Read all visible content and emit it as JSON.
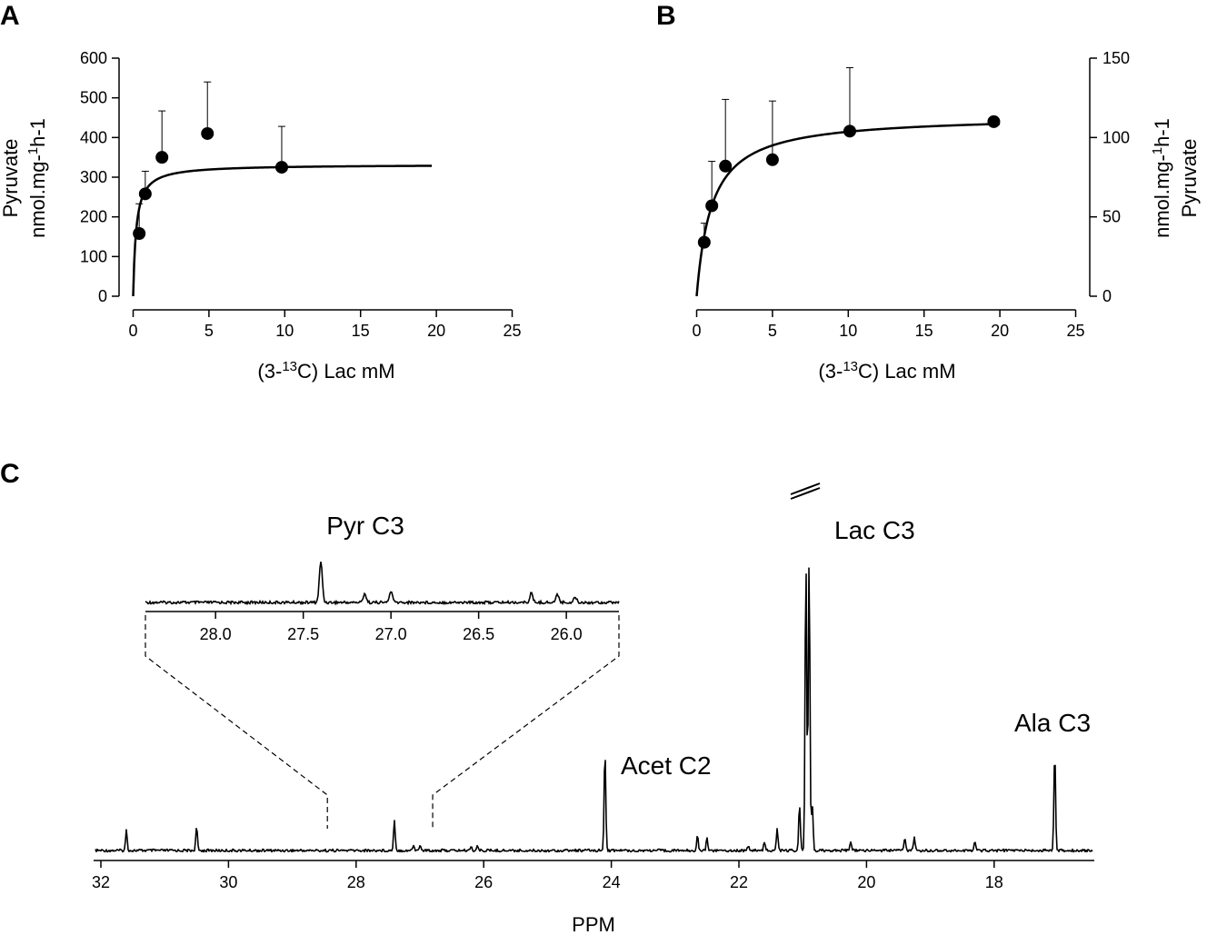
{
  "panels": {
    "A": {
      "letter": "A"
    },
    "B": {
      "letter": "B"
    },
    "C": {
      "letter": "C"
    }
  },
  "chart_data": [
    {
      "id": "A",
      "type": "scatter",
      "xlabel_parts": [
        "(3-",
        "13",
        "C) Lac mM"
      ],
      "ylabel_lines": [
        "Pyruvate",
        "nmol.mg-",
        "1",
        "h-1"
      ],
      "xlim": [
        0,
        25
      ],
      "ylim": [
        0,
        600
      ],
      "xticks": [
        0,
        5,
        10,
        15,
        20,
        25
      ],
      "yticks": [
        0,
        100,
        200,
        300,
        400,
        500,
        600
      ],
      "yaxis_side": "left",
      "points": [
        {
          "x": 0.4,
          "y": 158,
          "err": 75
        },
        {
          "x": 0.8,
          "y": 258,
          "err": 57
        },
        {
          "x": 1.9,
          "y": 350,
          "err": 117
        },
        {
          "x": 4.9,
          "y": 410,
          "err": 130
        },
        {
          "x": 9.8,
          "y": 325,
          "err": 103
        }
      ],
      "fit": {
        "model": "michaelis-menten",
        "vmax": 332,
        "km": 0.2,
        "x_range": [
          0,
          19.7
        ]
      }
    },
    {
      "id": "B",
      "type": "scatter",
      "xlabel_parts": [
        "(3-",
        "13",
        "C) Lac mM"
      ],
      "ylabel_lines": [
        "nmol.mg-",
        "1",
        "h-1",
        "Pyruvate"
      ],
      "xlim": [
        0,
        25
      ],
      "ylim": [
        0,
        150
      ],
      "xticks": [
        0,
        5,
        10,
        15,
        20,
        25
      ],
      "yticks": [
        0,
        50,
        100,
        150
      ],
      "yaxis_side": "right",
      "points": [
        {
          "x": 0.5,
          "y": 34,
          "err": 12
        },
        {
          "x": 1.0,
          "y": 57,
          "err": 28
        },
        {
          "x": 1.9,
          "y": 82,
          "err": 42
        },
        {
          "x": 5.0,
          "y": 86,
          "err": 37
        },
        {
          "x": 10.1,
          "y": 104,
          "err": 40
        },
        {
          "x": 19.6,
          "y": 110,
          "err": 3
        }
      ],
      "fit": {
        "model": "michaelis-menten",
        "vmax": 114,
        "km": 1.0,
        "x_range": [
          0,
          20
        ]
      }
    },
    {
      "id": "C",
      "type": "line",
      "xlabel": "PPM",
      "xlim": [
        32.1,
        16.4
      ],
      "xticks": [
        32,
        30,
        28,
        26,
        24,
        22,
        20,
        18
      ],
      "peaks": [
        {
          "ppm": 31.6,
          "height": 0.11
        },
        {
          "ppm": 30.5,
          "height": 0.13
        },
        {
          "ppm": 27.4,
          "height": 0.17
        },
        {
          "ppm": 27.1,
          "height": 0.03
        },
        {
          "ppm": 27.0,
          "height": 0.03
        },
        {
          "ppm": 26.2,
          "height": 0.025
        },
        {
          "ppm": 26.1,
          "height": 0.025
        },
        {
          "ppm": 24.1,
          "height": 0.55
        },
        {
          "ppm": 22.65,
          "height": 0.08
        },
        {
          "ppm": 22.5,
          "height": 0.07
        },
        {
          "ppm": 21.85,
          "height": 0.03
        },
        {
          "ppm": 21.6,
          "height": 0.05
        },
        {
          "ppm": 21.4,
          "height": 0.12
        },
        {
          "ppm": 21.05,
          "height": 0.25
        },
        {
          "ppm": 20.95,
          "height": 1.6
        },
        {
          "ppm": 20.9,
          "height": 1.6
        },
        {
          "ppm": 20.85,
          "height": 0.25
        },
        {
          "ppm": 20.25,
          "height": 0.05
        },
        {
          "ppm": 19.4,
          "height": 0.07
        },
        {
          "ppm": 19.25,
          "height": 0.07
        },
        {
          "ppm": 18.3,
          "height": 0.05
        },
        {
          "ppm": 17.05,
          "height": 0.55
        }
      ],
      "annotations": [
        "Acet C2",
        "Lac C3",
        "Ala C3"
      ],
      "inset": {
        "label": "Pyr C3",
        "xlim": [
          28.4,
          25.7
        ],
        "xticks": [
          28.0,
          27.5,
          27.0,
          26.5,
          26.0
        ],
        "xtick_labels": [
          "28.0",
          "27.5",
          "27.0",
          "26.5",
          "26.0"
        ],
        "zoom_range_ppm": [
          28.45,
          26.8
        ],
        "peaks": [
          {
            "ppm": 27.4,
            "height": 0.9
          },
          {
            "ppm": 27.15,
            "height": 0.2
          },
          {
            "ppm": 27.0,
            "height": 0.25
          },
          {
            "ppm": 26.2,
            "height": 0.2
          },
          {
            "ppm": 26.05,
            "height": 0.18
          },
          {
            "ppm": 25.95,
            "height": 0.12
          }
        ]
      }
    }
  ]
}
